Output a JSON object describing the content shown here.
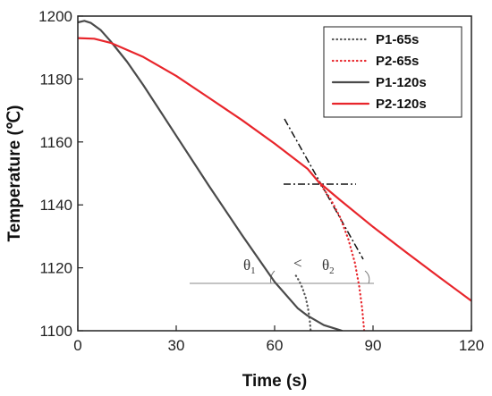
{
  "chart_data": {
    "type": "line",
    "xlabel": "Time (s)",
    "ylabel": "Temperature (℃)",
    "xlim": [
      0,
      120
    ],
    "ylim": [
      1100,
      1200
    ],
    "xticks": [
      "0",
      "30",
      "60",
      "90",
      "120"
    ],
    "yticks": [
      "1100",
      "1120",
      "1140",
      "1160",
      "1180",
      "1200"
    ],
    "grid": false,
    "legend_position": "top-right",
    "series": [
      {
        "name": "P1-65s",
        "color": "#555555",
        "style": "dotted",
        "x": [
          66.5,
          67.5,
          68.5,
          69.5,
          70.2,
          70.7,
          71.0
        ],
        "y": [
          1117.5,
          1115.8,
          1113.5,
          1110.5,
          1107.0,
          1103.5,
          1100.0
        ]
      },
      {
        "name": "P2-65s",
        "color": "#e8252b",
        "style": "dotted",
        "x": [
          73.5,
          77.0,
          80.0,
          82.5,
          84.5,
          85.8,
          86.7,
          87.3
        ],
        "y": [
          1147.2,
          1142.0,
          1136.0,
          1129.0,
          1121.5,
          1114.0,
          1107.0,
          1100.0
        ]
      },
      {
        "name": "P1-120s",
        "color": "#4a4a4a",
        "style": "solid",
        "x": [
          0,
          2,
          4,
          7,
          10,
          15,
          20,
          25,
          30,
          40,
          50,
          60,
          67,
          70,
          75,
          80.5
        ],
        "y": [
          1198.0,
          1198.5,
          1197.8,
          1195.5,
          1192.0,
          1185.5,
          1178.0,
          1170.0,
          1162.0,
          1146.0,
          1130.5,
          1115.5,
          1107.2,
          1104.8,
          1101.8,
          1100.0
        ]
      },
      {
        "name": "P2-120s",
        "color": "#e8252b",
        "style": "solid",
        "x": [
          0,
          5,
          10,
          20,
          30,
          40,
          50,
          60,
          70,
          73.5,
          80,
          90,
          100,
          110,
          120
        ],
        "y": [
          1193.0,
          1192.8,
          1191.5,
          1187.0,
          1181.0,
          1174.0,
          1167.0,
          1159.5,
          1151.5,
          1147.2,
          1141.5,
          1133.0,
          1125.0,
          1117.2,
          1109.5
        ]
      }
    ],
    "annotations": {
      "theta1": "θ",
      "theta1_sub": "1",
      "theta2": "θ",
      "theta2_sub": "2",
      "compare_symbol": "<"
    }
  }
}
